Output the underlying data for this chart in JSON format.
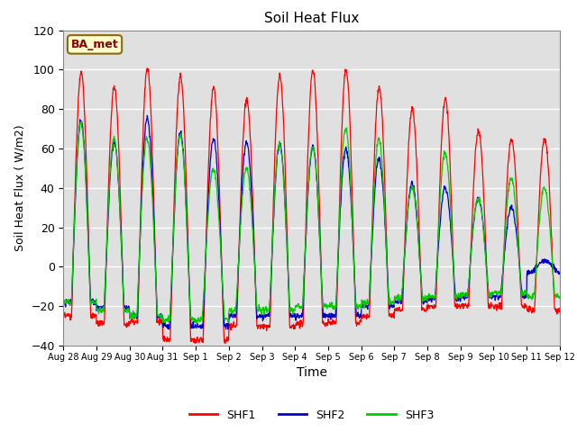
{
  "title": "Soil Heat Flux",
  "xlabel": "Time",
  "ylabel": "Soil Heat Flux ( W/m2)",
  "ylim": [
    -40,
    120
  ],
  "bg_color": "#e0e0e0",
  "site_label": "BA_met",
  "legend_labels": [
    "SHF1",
    "SHF2",
    "SHF3"
  ],
  "line_colors": [
    "#ff0000",
    "#0000cc",
    "#00cc00"
  ],
  "xtick_labels": [
    "Aug 28",
    "Aug 29",
    "Aug 30",
    "Aug 31",
    "Sep 1",
    "Sep 2",
    "Sep 3",
    "Sep 4",
    "Sep 5",
    "Sep 6",
    "Sep 7",
    "Sep 8",
    "Sep 9",
    "Sep 10",
    "Sep 11",
    "Sep 12"
  ],
  "num_days": 15,
  "peaks_shf1": [
    99,
    91,
    101,
    97,
    91,
    85,
    97,
    100,
    100,
    91,
    80,
    85,
    69,
    65,
    65
  ],
  "peaks_shf2": [
    74,
    63,
    75,
    68,
    65,
    63,
    62,
    61,
    60,
    55,
    42,
    40,
    35,
    30,
    3
  ],
  "peaks_shf3": [
    73,
    65,
    65,
    67,
    50,
    50,
    62,
    61,
    70,
    65,
    40,
    58,
    35,
    45,
    40
  ],
  "night_mins_shf1": [
    -25,
    -29,
    -28,
    -37,
    -37,
    -30,
    -30,
    -29,
    -28,
    -25,
    -22,
    -20,
    -20,
    -20,
    -22
  ],
  "night_mins_shf2": [
    -18,
    -21,
    -25,
    -30,
    -30,
    -25,
    -25,
    -25,
    -25,
    -20,
    -18,
    -16,
    -15,
    -15,
    -20
  ],
  "night_mins_shf3": [
    -18,
    -22,
    -25,
    -27,
    -27,
    -22,
    -22,
    -20,
    -20,
    -18,
    -16,
    -15,
    -14,
    -13,
    -15
  ],
  "n_per_day": 96
}
